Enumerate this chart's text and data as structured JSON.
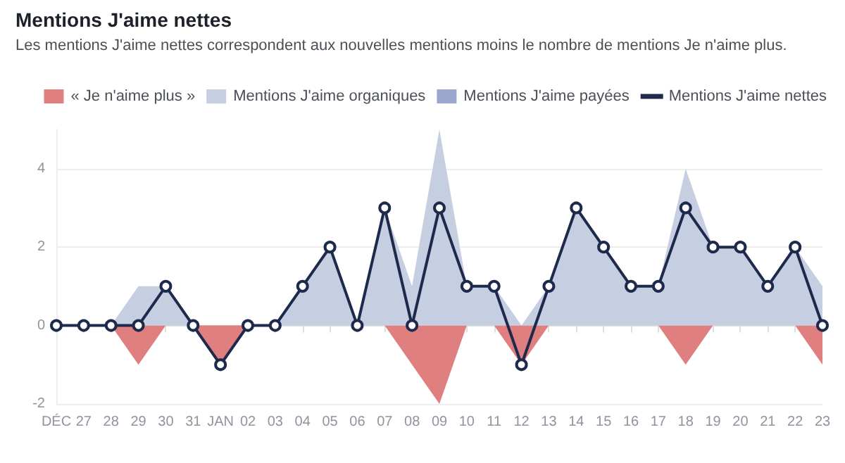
{
  "chart_data": {
    "type": "area",
    "title": "Mentions J'aime nettes",
    "subtitle": "Les mentions J'aime nettes correspondent aux nouvelles mentions moins le nombre de mentions Je n'aime plus.",
    "categories": [
      "DÉC",
      "27",
      "28",
      "29",
      "30",
      "31",
      "JAN",
      "02",
      "03",
      "04",
      "05",
      "06",
      "07",
      "08",
      "09",
      "10",
      "11",
      "12",
      "13",
      "14",
      "15",
      "16",
      "17",
      "18",
      "19",
      "20",
      "21",
      "22",
      "23"
    ],
    "series": [
      {
        "name": "« Je n'aime plus »",
        "color": "#e07f7f",
        "values": [
          0,
          0,
          0,
          -1,
          0,
          0,
          -1,
          0,
          0,
          0,
          0,
          0,
          0,
          -1,
          -2,
          0,
          0,
          -1,
          0,
          0,
          0,
          0,
          0,
          -1,
          0,
          0,
          0,
          0,
          -1
        ]
      },
      {
        "name": "Mentions J'aime organiques",
        "color": "#c6cee1",
        "values": [
          0,
          0,
          0,
          1,
          1,
          0,
          0,
          0,
          0,
          1,
          2,
          0,
          3,
          1,
          5,
          1,
          1,
          0,
          1,
          3,
          2,
          1,
          1,
          4,
          2,
          2,
          1,
          2,
          1
        ]
      },
      {
        "name": "Mentions J'aime payées",
        "color": "#9aa8cd",
        "values": [
          null,
          null,
          null,
          null,
          null,
          null,
          null,
          null,
          null,
          null,
          null,
          null,
          null,
          null,
          null,
          null,
          null,
          null,
          null,
          null,
          null,
          null,
          null,
          null,
          null,
          null,
          null,
          null,
          null
        ]
      },
      {
        "name": "Mentions J'aime nettes",
        "type": "line",
        "marker": "circle",
        "color": "#1e2a4c",
        "values": [
          0,
          0,
          0,
          0,
          1,
          0,
          -1,
          0,
          0,
          1,
          2,
          0,
          3,
          0,
          3,
          1,
          1,
          -1,
          1,
          3,
          2,
          1,
          1,
          3,
          2,
          2,
          1,
          2,
          0
        ]
      }
    ],
    "ylim": [
      -2,
      5
    ],
    "yticks": [
      -2,
      0,
      2,
      4
    ],
    "grid": "y",
    "legend": "top right"
  }
}
